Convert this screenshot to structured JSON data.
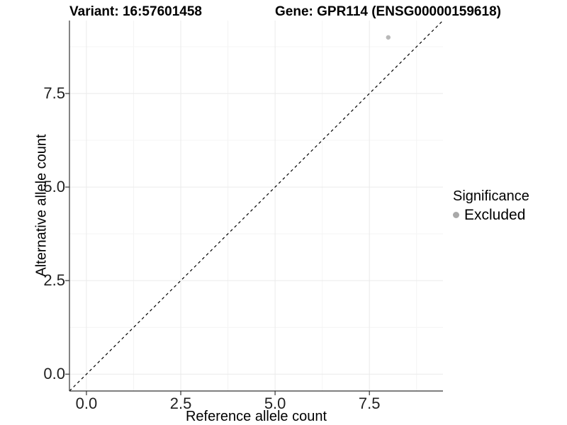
{
  "chart_data": {
    "type": "scatter",
    "title_left": "Variant: 16:57601458",
    "title_right": "Gene: GPR114 (ENSG00000159618)",
    "xlabel": "Reference allele count",
    "ylabel": "Alternative allele count",
    "xlim": [
      -0.45,
      9.45
    ],
    "ylim": [
      -0.45,
      9.45
    ],
    "x_major_ticks": [
      0.0,
      2.5,
      5.0,
      7.5
    ],
    "y_major_ticks": [
      0.0,
      2.5,
      5.0,
      7.5
    ],
    "x_tick_labels": [
      "0.0",
      "2.5",
      "5.0",
      "7.5"
    ],
    "y_tick_labels": [
      "0.0",
      "2.5",
      "5.0",
      "7.5"
    ],
    "minor_ticks": [
      1.25,
      3.75,
      6.25,
      8.75
    ],
    "grid": "major+minor",
    "series": [
      {
        "name": "Excluded",
        "color": "#b8b8b8",
        "points": [
          {
            "x": 8,
            "y": 9
          }
        ]
      }
    ],
    "reference_line": {
      "type": "identity",
      "style": "dashed",
      "from": [
        -0.45,
        -0.45
      ],
      "to": [
        9.45,
        9.45
      ],
      "color": "#000000"
    },
    "legend": {
      "title": "Significance",
      "position": "right",
      "items": [
        {
          "label": "Excluded",
          "color": "#a9a9a9",
          "marker": "circle"
        }
      ]
    },
    "colors": {
      "grid_major": "#eaeaea",
      "grid_minor": "#f4f4f4",
      "axis": "#333333",
      "tick_text": "#1f1f1f",
      "background": "#ffffff"
    }
  }
}
